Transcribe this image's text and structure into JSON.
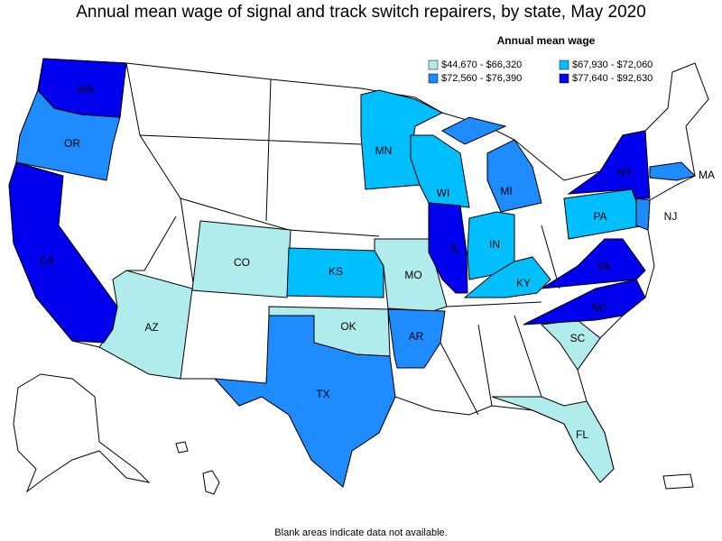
{
  "title": "Annual mean wage of signal and track switch repairers, by state, May 2020",
  "legend": {
    "title": "Annual mean wage",
    "items": [
      {
        "label": "$44,670 - $66,320",
        "color": "#b0ecec",
        "states": [
          "CO",
          "AZ",
          "MO",
          "OK",
          "SC",
          "FL"
        ]
      },
      {
        "label": "$67,930 - $72,060",
        "color": "#00bfff",
        "states": [
          "MN",
          "WI",
          "KS",
          "IN",
          "KY",
          "PA"
        ]
      },
      {
        "label": "$72,560 - $76,390",
        "color": "#1e8cff",
        "states": [
          "OR",
          "MI",
          "TX",
          "AR",
          "MA",
          "NJ"
        ]
      },
      {
        "label": "$77,640 - $92,630",
        "color": "#0000ee",
        "states": [
          "WA",
          "CA",
          "IL",
          "NY",
          "VA",
          "NC"
        ]
      }
    ]
  },
  "footnote": "Blank areas indicate data not available."
}
